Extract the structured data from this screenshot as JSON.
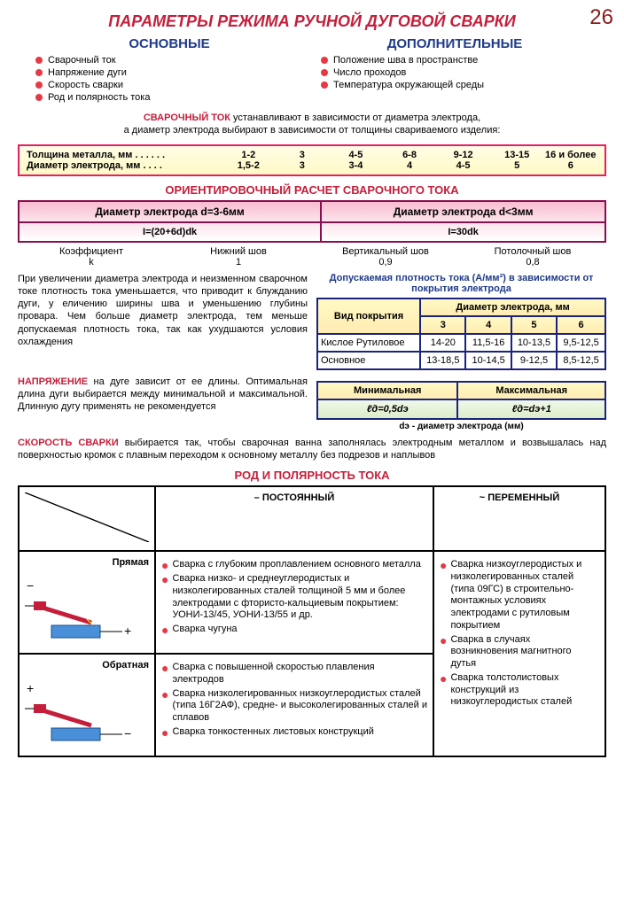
{
  "pageNum": "26",
  "title": "ПАРАМЕТРЫ РЕЖИМА РУЧНОЙ ДУГОВОЙ СВАРКИ",
  "cols": {
    "left": {
      "h": "ОСНОВНЫЕ",
      "items": [
        "Сварочный ток",
        "Напряжение дуги",
        "Скорость сварки",
        "Род и полярность тока"
      ]
    },
    "right": {
      "h": "ДОПОЛНИТЕЛЬНЫЕ",
      "items": [
        "Положение шва в пространстве",
        "Число проходов",
        "Температура окружающей среды"
      ]
    }
  },
  "intro": {
    "lead": "СВАРОЧНЫЙ ТОК",
    "text1": " устанавливают в зависимости от диаметра электрода,",
    "text2": "а диаметр электрода выбирают в зависимости от толщины свариваемого изделия:"
  },
  "thick": {
    "r1lab": "Толщина металла, мм . . . . . .",
    "r1": [
      "1-2",
      "3",
      "4-5",
      "6-8",
      "9-12",
      "13-15",
      "16 и более"
    ],
    "r2lab": "Диаметр электрода, мм . . . .",
    "r2": [
      "1,5-2",
      "3",
      "3-4",
      "4",
      "4-5",
      "5",
      "6"
    ]
  },
  "calc": {
    "h": "ОРИЕНТИРОВОЧНЫЙ РАСЧЕТ СВАРОЧНОГО ТОКА",
    "h1": "Диаметр электрода d=3-6мм",
    "h2": "Диаметр электрода d<3мм",
    "f1": "I=(20+6d)dk",
    "f2": "I=30dk"
  },
  "k": {
    "lab": "Коэффициент\nk",
    "c1": "Нижний шов\n1",
    "c2": "Вертикальный шов\n0,9",
    "c3": "Потолочный шов\n0,8"
  },
  "para1": "При увеличении диаметра электрода и неизменном сварочном токе плотность тока уменьшается, что приводит к блужданию дуги, у еличению ширины шва и уменьшению глубины провара. Чем больше диаметр электрода, тем меньше допускаемая плотность тока, так как ухудшаются условия охлаждения",
  "dens": {
    "h": "Допускаемая плотность тока (А/мм²) в зависимости от покрытия электрода",
    "ch": "Вид покрытия",
    "dh": "Диаметр электрода, мм",
    "cols": [
      "3",
      "4",
      "5",
      "6"
    ],
    "rows": [
      {
        "n": "Кислое Рутиловое",
        "v": [
          "14-20",
          "11,5-16",
          "10-13,5",
          "9,5-12,5"
        ]
      },
      {
        "n": "Основное",
        "v": [
          "13-18,5",
          "10-14,5",
          "9-12,5",
          "8,5-12,5"
        ]
      }
    ]
  },
  "para2": {
    "lead": "НАПРЯЖЕНИЕ",
    "text": " на дуге зависит от ее длины. Оптимальная длина дуги выбирается между минимальной и максимальной. Длинную дугу применять не рекомендуется"
  },
  "arc": {
    "h1": "Минимальная",
    "h2": "Максимальная",
    "f1": "ℓд=0,5dэ",
    "f2": "ℓд=dэ+1",
    "note": "dэ - диаметр электрода (мм)"
  },
  "para3": {
    "lead": "СКОРОСТЬ СВАРКИ",
    "text": " выбирается так, чтобы сварочная ванна заполнялась электродным металлом и возвышалась над поверхностью кромок с плавным переходом к основному металлу без подрезов и наплывов"
  },
  "pol": {
    "h": "РОД И ПОЛЯРНОСТЬ ТОКА",
    "h1": "– ПОСТОЯННЫЙ",
    "h2": "~ ПЕРЕМЕННЫЙ",
    "r1": "Прямая",
    "r2": "Обратная",
    "dc1": [
      "Сварка с глубоким проплавлением основного металла",
      "Сварка низко- и среднеуглеродистых и низколегированных сталей толщиной 5 мм и более электродами с фтористо-кальциевым покрытием: УОНИ-13/45, УОНИ-13/55 и др.",
      "Сварка чугуна"
    ],
    "dc2": [
      "Сварка с повышенной скоростью плавления электродов",
      "Сварка низколегированных низкоуглеродистых сталей (типа 16Г2АФ), средне- и высоколегированных сталей и сплавов",
      "Сварка тонкостенных листовых конструкций"
    ],
    "ac": [
      "Сварка низкоуглеродистых и низколегированных сталей (типа 09ГС) в строительно-монтажных условиях электродами с рутиловым покрытием",
      "Сварка в случаях возникновения магнитного дутья",
      "Сварка толстолистовых конструкций из низкоуглеродистых сталей"
    ]
  }
}
